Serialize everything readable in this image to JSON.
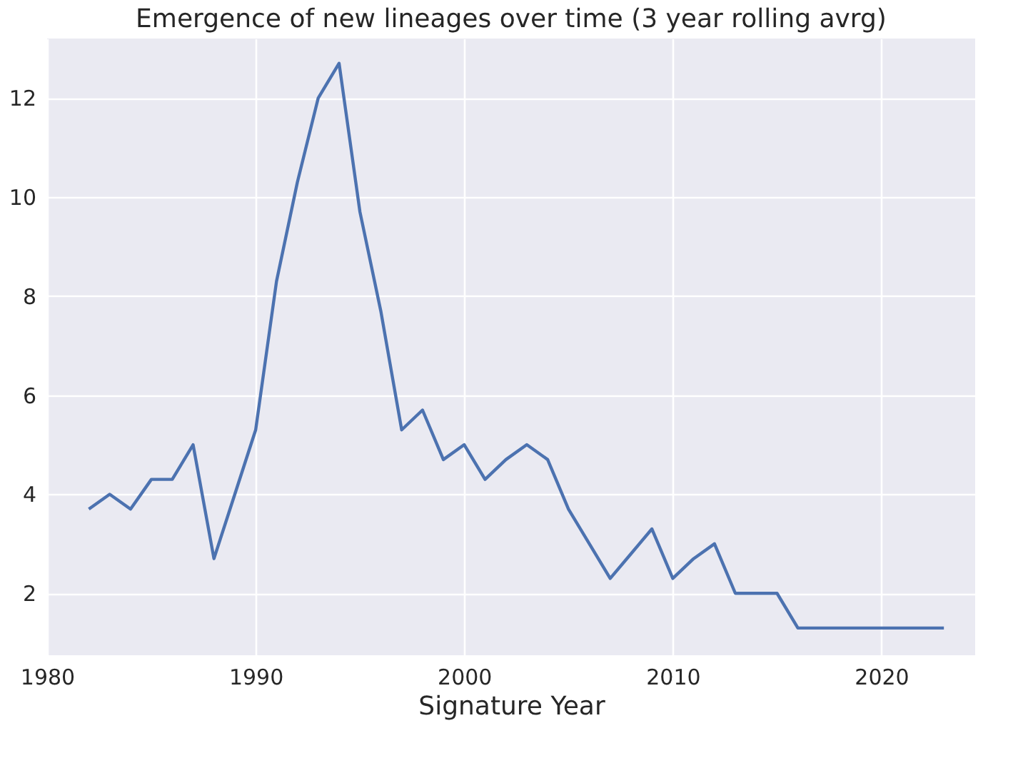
{
  "chart_data": {
    "type": "line",
    "title": "Emergence of new lineages over time (3 year rolling avrg)",
    "xlabel": "Signature Year",
    "x": [
      1982,
      1983,
      1984,
      1985,
      1986,
      1987,
      1988,
      1989,
      1990,
      1991,
      1992,
      1993,
      1994,
      1995,
      1996,
      1997,
      1998,
      1999,
      2000,
      2001,
      2002,
      2003,
      2004,
      2005,
      2006,
      2007,
      2008,
      2009,
      2010,
      2011,
      2012,
      2013,
      2014,
      2015,
      2016,
      2017,
      2018,
      2019,
      2020,
      2021,
      2022,
      2023
    ],
    "series": [
      {
        "color": "#4c72b0",
        "values": [
          3.7,
          4.0,
          3.7,
          4.3,
          4.3,
          5.0,
          2.7,
          4.0,
          5.3,
          8.3,
          10.3,
          12.0,
          12.7,
          9.7,
          7.7,
          5.3,
          5.7,
          4.7,
          5.0,
          4.3,
          4.7,
          5.0,
          4.7,
          3.7,
          3.0,
          2.3,
          2.8,
          3.3,
          2.3,
          2.7,
          3.0,
          2.0,
          2.0,
          2.0,
          1.3,
          1.3,
          1.3,
          1.3,
          1.3,
          1.3,
          1.3,
          1.3
        ]
      }
    ],
    "xlim": [
      1980,
      2024.5
    ],
    "xticks": [
      1980,
      1990,
      2000,
      2010,
      2020
    ],
    "ylim": [
      0.75,
      13.2
    ],
    "yticks": [
      2,
      4,
      6,
      8,
      10,
      12
    ],
    "grid": true,
    "marker": "none",
    "line_style": "solid"
  }
}
